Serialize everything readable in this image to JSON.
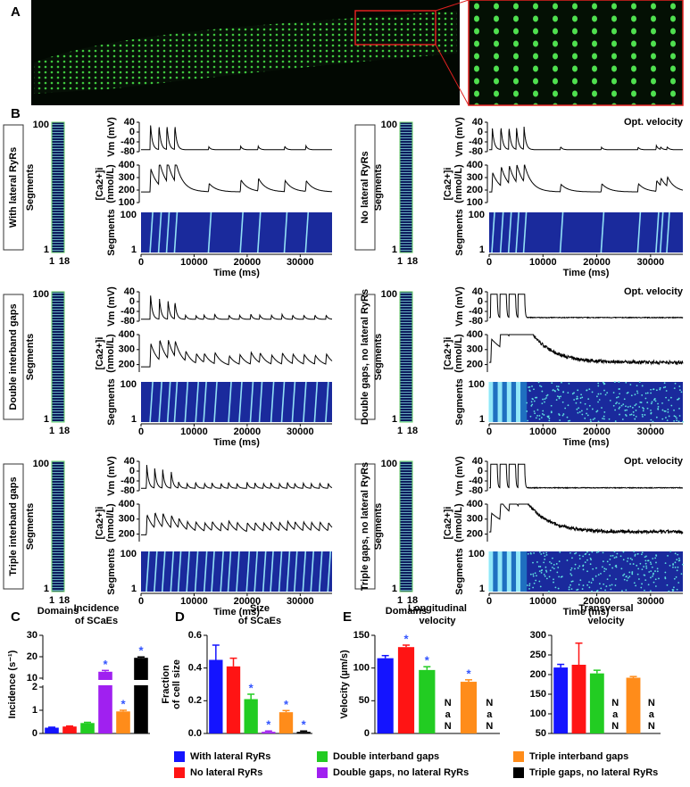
{
  "panel_a": {
    "letter": "A"
  },
  "panel_b": {
    "letter": "B"
  },
  "legend": [
    {
      "name": "With lateral RyRs",
      "color": "#1414ff"
    },
    {
      "name": "No lateral RyRs",
      "color": "#ff1414"
    },
    {
      "name": "Double interband gaps",
      "color": "#22cc22"
    },
    {
      "name": "Double gaps, no lateral RyRs",
      "color": "#a020f0"
    },
    {
      "name": "Triple interband gaps",
      "color": "#ff8c1a"
    },
    {
      "name": "Triple gaps, no lateral RyRs",
      "color": "#000000"
    }
  ],
  "chart_data": [
    {
      "type": "trace",
      "title": "With lateral RyRs",
      "vm_label": "Vm (mV)",
      "ca_label": "[Ca2+]i",
      "ca_unit": "(nmol/L)",
      "seg_label": "Segments",
      "xlabel": "Time (ms)",
      "xlim": [
        0,
        36000
      ],
      "xticks": [
        0,
        10000,
        20000,
        30000
      ],
      "vm_ylim": [
        -80,
        40
      ],
      "vm_yticks": [
        40,
        0,
        -40,
        -80
      ],
      "ca_ylim": [
        100,
        400
      ],
      "ca_yticks": [
        400,
        300,
        200,
        100
      ],
      "seg_ticks": [
        100,
        1
      ],
      "domain_ticks": [
        1,
        18
      ],
      "vm_shape": "spike",
      "event_width": 350,
      "vm_rest": -72,
      "ca_rest": 185,
      "events": [
        1700,
        3300,
        4800,
        6300,
        12700,
        18700,
        22000,
        27000,
        31000
      ],
      "vm_peaks": [
        33,
        30,
        30,
        30,
        -60,
        -58,
        -58,
        -58,
        -56
      ],
      "ca_peaks": [
        370,
        375,
        360,
        360,
        250,
        280,
        285,
        275,
        270
      ]
    },
    {
      "type": "trace",
      "title": "No lateral RyRs",
      "subtitle": "Opt. velocity",
      "vm_label": "Vm (mV)",
      "ca_label": "[Ca2+]i",
      "ca_unit": "(nmol/L)",
      "seg_label": "Segments",
      "xlabel": "Time (ms)",
      "xlim": [
        0,
        36000
      ],
      "xticks": [
        0,
        10000,
        20000,
        30000
      ],
      "vm_ylim": [
        -80,
        40
      ],
      "vm_yticks": [
        40,
        0,
        -40,
        -80
      ],
      "ca_ylim": [
        100,
        400
      ],
      "ca_yticks": [
        400,
        300,
        200,
        100
      ],
      "seg_ticks": [
        100,
        1
      ],
      "domain_ticks": [
        1,
        18
      ],
      "vm_shape": "spike",
      "event_width": 350,
      "vm_rest": -72,
      "ca_rest": 185,
      "events": [
        500,
        2100,
        3600,
        5000,
        6400,
        13200,
        20800,
        27600,
        31000,
        31800,
        33000
      ],
      "vm_peaks": [
        20,
        25,
        22,
        20,
        20,
        -60,
        -62,
        -62,
        -55,
        -62,
        -60
      ],
      "ca_peaks": [
        340,
        340,
        330,
        330,
        330,
        245,
        250,
        250,
        270,
        245,
        260
      ]
    },
    {
      "type": "trace",
      "title": "Double interband gaps",
      "vm_label": "Vm (mV)",
      "ca_label": "[Ca2+]i",
      "ca_unit": "(nmol/L)",
      "seg_label": "Segments",
      "xlabel": "Time (ms)",
      "xlim": [
        0,
        36000
      ],
      "xticks": [
        0,
        10000,
        20000,
        30000
      ],
      "vm_ylim": [
        -80,
        40
      ],
      "vm_yticks": [
        40,
        0,
        -40,
        -80
      ],
      "ca_ylim": [
        150,
        400
      ],
      "ca_yticks": [
        400,
        300,
        200
      ],
      "seg_ticks": [
        100,
        1
      ],
      "domain_ticks": [
        1,
        18
      ],
      "vm_shape": "spike",
      "event_width": 350,
      "vm_rest": -72,
      "ca_rest": 185,
      "events": [
        1700,
        3400,
        5000,
        6300,
        8300,
        10300,
        11800,
        13800,
        16500,
        18500,
        20600,
        22300,
        24500,
        26500,
        28500,
        30600,
        32700,
        34800
      ],
      "vm_peaks": [
        30,
        10,
        5,
        0,
        -55,
        -58,
        -55,
        -50,
        -55,
        -55,
        -50,
        -55,
        -55,
        -52,
        -55,
        -55,
        -55,
        -55
      ],
      "ca_peaks": [
        340,
        320,
        310,
        290,
        250,
        250,
        245,
        260,
        245,
        250,
        265,
        250,
        245,
        260,
        250,
        250,
        245,
        255
      ]
    },
    {
      "type": "trace",
      "title": "Double gaps, no lateral RyRs",
      "subtitle": "Opt. velocity",
      "vm_label": "Vm (mV)",
      "ca_label": "[Ca2+]i",
      "ca_unit": "(nmol/L)",
      "seg_label": "Segments",
      "xlabel": "Time (ms)",
      "xlim": [
        0,
        36000
      ],
      "xticks": [
        0,
        10000,
        20000,
        30000
      ],
      "vm_ylim": [
        -80,
        40
      ],
      "vm_yticks": [
        40,
        0,
        -40,
        -80
      ],
      "ca_ylim": [
        150,
        400
      ],
      "ca_yticks": [
        400,
        300,
        200
      ],
      "seg_ticks": [
        100,
        1
      ],
      "domain_ticks": [
        1,
        18
      ],
      "vm_shape": "plateau",
      "event_width": 1200,
      "vm_rest": -65,
      "ca_rest": 215,
      "noise_after": 7000,
      "events": [
        300,
        2000,
        3700,
        5400
      ],
      "vm_peaks": [
        30,
        30,
        30,
        30
      ],
      "ca_peaks": [
        370,
        375,
        370,
        370
      ]
    },
    {
      "type": "trace",
      "title": "Triple interband gaps",
      "vm_label": "Vm (mV)",
      "ca_label": "[Ca2+]i",
      "ca_unit": "(nmol/L)",
      "seg_label": "Segments",
      "domains_label": "Domains",
      "xlabel": "Time (ms)",
      "xlim": [
        0,
        36000
      ],
      "xticks": [
        0,
        10000,
        20000,
        30000
      ],
      "vm_ylim": [
        -80,
        40
      ],
      "vm_yticks": [
        40,
        0,
        -40,
        -80
      ],
      "ca_ylim": [
        150,
        400
      ],
      "ca_yticks": [
        400,
        300,
        200
      ],
      "seg_ticks": [
        100,
        1
      ],
      "domain_ticks": [
        1,
        18
      ],
      "vm_shape": "spike",
      "event_width": 350,
      "vm_rest": -70,
      "ca_rest": 195,
      "events": [
        1000,
        2500,
        4000,
        5600,
        7000,
        8600,
        10200,
        11900,
        13300,
        15000,
        16400,
        18000,
        19900,
        21400,
        23000,
        24400,
        26000,
        27500,
        28900,
        30500,
        32000,
        33600,
        35200
      ],
      "vm_peaks": [
        25,
        10,
        5,
        0,
        -45,
        -50,
        -45,
        -50,
        -48,
        -50,
        -45,
        -50,
        -45,
        -48,
        -50,
        -48,
        -50,
        -45,
        -50,
        -48,
        -50,
        -48,
        -50
      ],
      "ca_peaks": [
        330,
        300,
        290,
        280,
        260,
        250,
        255,
        250,
        255,
        250,
        260,
        250,
        255,
        250,
        250,
        255,
        250,
        260,
        250,
        255,
        250,
        255,
        250
      ]
    },
    {
      "type": "trace",
      "title": "Triple gaps, no lateral RyRs",
      "subtitle": "Opt. velocity",
      "vm_label": "Vm (mV)",
      "ca_label": "[Ca2+]i",
      "ca_unit": "(nmol/L)",
      "seg_label": "Segments",
      "domains_label": "Domains",
      "xlabel": "Time (ms)",
      "xlim": [
        0,
        36000
      ],
      "xticks": [
        0,
        10000,
        20000,
        30000
      ],
      "vm_ylim": [
        -80,
        40
      ],
      "vm_yticks": [
        40,
        0,
        -40,
        -80
      ],
      "ca_ylim": [
        150,
        400
      ],
      "ca_yticks": [
        400,
        300,
        200
      ],
      "seg_ticks": [
        100,
        1
      ],
      "domain_ticks": [
        1,
        18
      ],
      "vm_shape": "plateau",
      "event_width": 1200,
      "vm_rest": -68,
      "ca_rest": 215,
      "noise_after": 7000,
      "events": [
        300,
        2000,
        3700,
        5400
      ],
      "vm_peaks": [
        28,
        28,
        28,
        28
      ],
      "ca_peaks": [
        340,
        340,
        340,
        340
      ]
    },
    {
      "type": "bar",
      "letter": "C",
      "title": [
        "Incidence",
        "of SCaEs"
      ],
      "ylabel": [
        "Incidence (s⁻¹)"
      ],
      "ylim": [
        0,
        30
      ],
      "axis_break": [
        2,
        10
      ],
      "yticks": [
        0,
        1,
        2,
        10,
        20,
        30
      ],
      "values": [
        0.25,
        0.3,
        0.45,
        13,
        0.95,
        19.5
      ],
      "errors": [
        0.02,
        0.02,
        0.03,
        0.6,
        0.05,
        0.4
      ],
      "stars": [
        null,
        null,
        null,
        "*",
        "*",
        "*"
      ]
    },
    {
      "type": "bar",
      "letter": "D",
      "title": [
        "Size",
        "of SCaEs"
      ],
      "ylabel": [
        "Fraction",
        "of cell size"
      ],
      "ylim": [
        0,
        0.6
      ],
      "yticks": [
        {
          "value": 0,
          "label": "0.0"
        },
        0.2,
        0.4,
        0.6
      ],
      "values": [
        0.45,
        0.41,
        0.21,
        0.01,
        0.13,
        0.01
      ],
      "errors": [
        0.09,
        0.05,
        0.03,
        0.005,
        0.01,
        0.005
      ],
      "stars": [
        null,
        null,
        "*",
        "*",
        "*",
        "*"
      ]
    },
    {
      "type": "bar",
      "letter": "E",
      "title": [
        "Longitudinal",
        "velocity"
      ],
      "ylabel": [
        "Velocity (µm/s)"
      ],
      "ylim": [
        0,
        150
      ],
      "yticks": [
        0,
        50,
        100,
        150
      ],
      "values": [
        115,
        132,
        97,
        null,
        79,
        null
      ],
      "errors": [
        4,
        3,
        5,
        null,
        3,
        null
      ],
      "value_labels": [
        null,
        null,
        null,
        "NaN",
        null,
        "NaN"
      ],
      "stars": [
        null,
        "*",
        "*",
        null,
        "*",
        null
      ]
    },
    {
      "type": "bar",
      "title": [
        "Transversal",
        "velocity"
      ],
      "ylim": [
        50,
        300
      ],
      "yticks": [
        50,
        100,
        150,
        200,
        250,
        300
      ],
      "values": [
        218,
        225,
        203,
        null,
        192,
        null
      ],
      "errors": [
        8,
        55,
        8,
        null,
        3,
        null
      ],
      "value_labels": [
        null,
        null,
        null,
        "NaN",
        null,
        "NaN"
      ]
    }
  ]
}
